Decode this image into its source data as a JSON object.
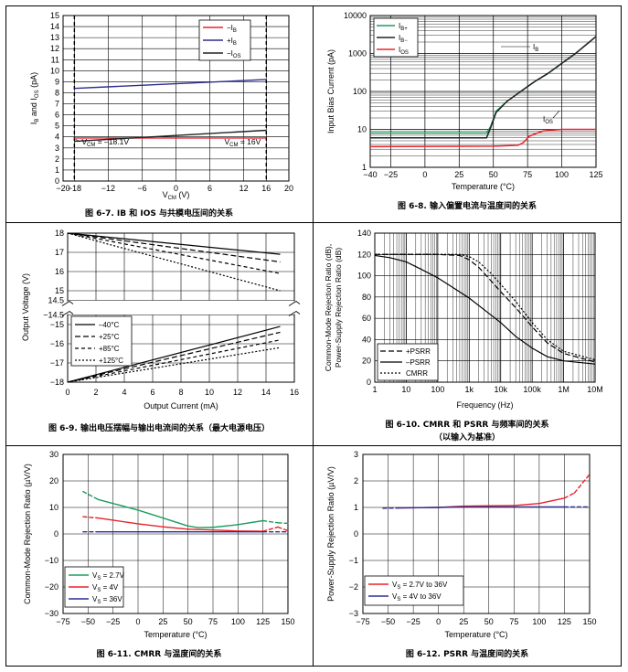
{
  "chart_data": [
    {
      "id": "fig67",
      "type": "line",
      "caption": "图 6-7. IB 和 IOS 与共模电压间的关系",
      "xlabel": "VCM (V)",
      "ylabel": "IB and IOS (pA)",
      "xlim": [
        -20,
        20
      ],
      "ylim": [
        0,
        15
      ],
      "xticks": [
        -20,
        -18,
        -12,
        -6,
        0,
        6,
        12,
        16,
        20
      ],
      "yticks": [
        0,
        1,
        2,
        3,
        4,
        5,
        6,
        7,
        8,
        9,
        10,
        11,
        12,
        13,
        14,
        15
      ],
      "grid": true,
      "legend": [
        "–IB",
        "+IB",
        "–IOS"
      ],
      "series": [
        {
          "name": "–IB",
          "color": "#e8232a",
          "dash": "",
          "x": [
            -18,
            16
          ],
          "y": [
            3.9,
            3.9
          ]
        },
        {
          "name": "+IB",
          "color": "#2b2f8f",
          "dash": "",
          "x": [
            -18,
            16
          ],
          "y": [
            8.4,
            9.2
          ]
        },
        {
          "name": "–IOS",
          "color": "#222222",
          "dash": "",
          "x": [
            -18,
            16
          ],
          "y": [
            3.6,
            4.6
          ]
        }
      ],
      "annotations": [
        "VCM = –18.1V",
        "VCM = 16V"
      ]
    },
    {
      "id": "fig68",
      "type": "line",
      "caption": "图 6-8. 输入偏置电流与温度间的关系",
      "xlabel": "Temperature (°C)",
      "ylabel": "Input Bias Current (pA)",
      "xlim": [
        -40,
        125
      ],
      "ylim": [
        1,
        10000
      ],
      "log_y": true,
      "xticks": [
        -40,
        -25,
        0,
        25,
        50,
        75,
        100,
        125
      ],
      "yticks": [
        1,
        10,
        100,
        1000,
        10000
      ],
      "grid": true,
      "legend": [
        "IB+",
        "IB–",
        "IOS"
      ],
      "annotations": [
        "IB",
        "IOS"
      ],
      "series": [
        {
          "name": "IB+",
          "color": "#1a9e5c",
          "dash": "",
          "x": [
            -40,
            40,
            45,
            48,
            52,
            60,
            70,
            80,
            90,
            100,
            110,
            125
          ],
          "y": [
            8,
            8,
            8,
            12,
            30,
            55,
            100,
            180,
            300,
            550,
            1000,
            2800
          ]
        },
        {
          "name": "IB–",
          "color": "#222222",
          "dash": "",
          "x": [
            -40,
            40,
            45,
            48,
            52,
            60,
            70,
            80,
            90,
            100,
            110,
            125
          ],
          "y": [
            6,
            6,
            6,
            11,
            28,
            55,
            100,
            180,
            300,
            550,
            1000,
            2800
          ]
        },
        {
          "name": "IOS",
          "color": "#e8232a",
          "dash": "",
          "x": [
            -40,
            50,
            60,
            68,
            72,
            76,
            80,
            86,
            92,
            100,
            110,
            125
          ],
          "y": [
            3.5,
            3.6,
            3.7,
            3.8,
            4.5,
            6.5,
            7.5,
            9,
            9.5,
            10,
            10,
            10
          ]
        }
      ]
    },
    {
      "id": "fig69",
      "type": "line",
      "caption": "图 6-9. 输出电压摆幅与输出电流间的关系（最大电源电压）",
      "xlabel": "Output Current (mA)",
      "ylabel": "Output Voltage (V)",
      "xlim": [
        0,
        16
      ],
      "xticks": [
        0,
        2,
        4,
        6,
        8,
        10,
        12,
        14,
        16
      ],
      "yticks_top": [
        18,
        17,
        16,
        15,
        14.5
      ],
      "yticks_bottom": [
        -14.5,
        -15,
        -16,
        -17,
        -18
      ],
      "grid": true,
      "legend": [
        "–40°C",
        "+25°C",
        "+85°C",
        "+125°C"
      ],
      "series": [
        {
          "name": "–40°C",
          "dash": "",
          "x": [
            0,
            15
          ],
          "y_top": [
            18,
            16.9
          ],
          "y_bot": [
            -18,
            -15.1
          ]
        },
        {
          "name": "+25°C",
          "dash": "6,3",
          "x": [
            0,
            15
          ],
          "y_top": [
            18,
            16.5
          ],
          "y_bot": [
            -18,
            -15.4
          ]
        },
        {
          "name": "+85°C",
          "dash": "4,3",
          "x": [
            0,
            15
          ],
          "y_top": [
            18,
            15.9
          ],
          "y_bot": [
            -18,
            -15.8
          ]
        },
        {
          "name": "+125°C",
          "dash": "2,2",
          "x": [
            0,
            15
          ],
          "y_top": [
            18,
            15.0
          ],
          "y_bot": [
            -18,
            -16.2
          ]
        }
      ]
    },
    {
      "id": "fig610",
      "type": "line",
      "caption": "图 6-10. CMRR 和 PSRR 与频率间的关系",
      "caption2": "（以输入为基准）",
      "xlabel": "Frequency (Hz)",
      "ylabel": "Common-Mode Rejection Ratio (dB), Power-Supply Rejection Ratio (dB)",
      "xlim": [
        1,
        10000000
      ],
      "log_x": true,
      "ylim": [
        0,
        140
      ],
      "xticks": [
        "1",
        "10",
        "100",
        "1k",
        "10k",
        "100k",
        "1M",
        "10M"
      ],
      "yticks": [
        0,
        20,
        40,
        60,
        80,
        100,
        120,
        140
      ],
      "grid": true,
      "legend": [
        "+PSRR",
        "–PSRR",
        "CMRR"
      ],
      "series": [
        {
          "name": "+PSRR",
          "dash": "6,3",
          "x": [
            1,
            100,
            500,
            1000,
            2000,
            5000,
            10000,
            30000,
            100000,
            300000,
            1000000,
            10000000
          ],
          "y": [
            120,
            120,
            119,
            115,
            108,
            95,
            85,
            70,
            52,
            37,
            27,
            19
          ]
        },
        {
          "name": "–PSRR",
          "dash": "",
          "x": [
            1,
            3,
            10,
            30,
            100,
            300,
            1000,
            3000,
            10000,
            30000,
            100000,
            300000,
            1000000,
            10000000
          ],
          "y": [
            119,
            117,
            113,
            106,
            98,
            89,
            79,
            68,
            56,
            43,
            32,
            24,
            20,
            17
          ]
        },
        {
          "name": "CMRR",
          "dash": "2,2",
          "x": [
            1,
            100,
            500,
            1000,
            2000,
            5000,
            10000,
            30000,
            100000,
            300000,
            1000000,
            10000000
          ],
          "y": [
            120,
            120,
            120,
            118,
            113,
            102,
            92,
            76,
            56,
            40,
            29,
            21
          ]
        }
      ]
    },
    {
      "id": "fig611",
      "type": "line",
      "caption": "图 6-11. CMRR 与温度间的关系",
      "xlabel": "Temperature (°C)",
      "ylabel": "Common-Mode Rejection Ratio (µV/V)",
      "xlim": [
        -75,
        150
      ],
      "ylim": [
        -30,
        30
      ],
      "xticks": [
        -75,
        -50,
        -25,
        0,
        25,
        50,
        75,
        100,
        125,
        150
      ],
      "yticks": [
        -30,
        -20,
        -10,
        0,
        10,
        20,
        30
      ],
      "grid": true,
      "legend": [
        "VS = 2.7V",
        "VS = 4V",
        "VS = 36V"
      ],
      "series": [
        {
          "name": "VS = 2.7V",
          "color": "#1a9e5c",
          "x": [
            -55,
            -40,
            -25,
            0,
            25,
            50,
            60,
            75,
            100,
            125,
            140,
            150
          ],
          "y": [
            16,
            13,
            11.5,
            9,
            6,
            3,
            2.4,
            2.5,
            3.5,
            5,
            4.2,
            4
          ],
          "dash_ranges": [
            [
              -55,
              -40
            ],
            [
              125,
              150
            ]
          ]
        },
        {
          "name": "VS = 4V",
          "color": "#e8232a",
          "x": [
            -55,
            -40,
            -25,
            0,
            25,
            50,
            75,
            100,
            125,
            140,
            150
          ],
          "y": [
            6.5,
            6,
            5.2,
            3.8,
            2.7,
            1.8,
            1.5,
            1.1,
            1,
            2.6,
            1.2
          ],
          "dash_ranges": [
            [
              -55,
              -40
            ],
            [
              125,
              150
            ]
          ]
        },
        {
          "name": "VS = 36V",
          "color": "#2b2f8f",
          "x": [
            -55,
            -40,
            0,
            50,
            100,
            125,
            150
          ],
          "y": [
            0.8,
            0.8,
            0.8,
            0.8,
            0.8,
            0.8,
            0.8
          ],
          "dash_ranges": [
            [
              -55,
              -40
            ],
            [
              125,
              150
            ]
          ]
        }
      ]
    },
    {
      "id": "fig612",
      "type": "line",
      "caption": "图 6-12. PSRR 与温度间的关系",
      "xlabel": "Temperature (°C)",
      "ylabel": "Power-Supply Rejection Ratio (µV/V)",
      "xlim": [
        -75,
        150
      ],
      "ylim": [
        -3,
        3
      ],
      "xticks": [
        -75,
        -50,
        -25,
        0,
        25,
        50,
        75,
        100,
        125,
        150
      ],
      "yticks": [
        -3,
        -2,
        -1,
        0,
        1,
        2,
        3
      ],
      "grid": true,
      "legend": [
        "VS = 2.7V to 36V",
        "VS = 4V to 36V"
      ],
      "series": [
        {
          "name": "VS = 2.7V to 36V",
          "color": "#e8232a",
          "x": [
            -55,
            -40,
            0,
            25,
            50,
            75,
            100,
            125,
            135,
            150
          ],
          "y": [
            0.98,
            0.98,
            1.0,
            1.05,
            1.06,
            1.07,
            1.15,
            1.35,
            1.55,
            2.25
          ],
          "dash_ranges": [
            [
              -55,
              -40
            ],
            [
              125,
              150
            ]
          ]
        },
        {
          "name": "VS = 4V to 36V",
          "color": "#2b2f8f",
          "x": [
            -55,
            -40,
            0,
            25,
            50,
            75,
            100,
            125,
            150
          ],
          "y": [
            0.97,
            0.98,
            1.0,
            1.02,
            1.02,
            1.02,
            1.02,
            1.02,
            1.02
          ],
          "dash_ranges": [
            [
              -55,
              -40
            ],
            [
              125,
              150
            ]
          ]
        }
      ]
    }
  ]
}
